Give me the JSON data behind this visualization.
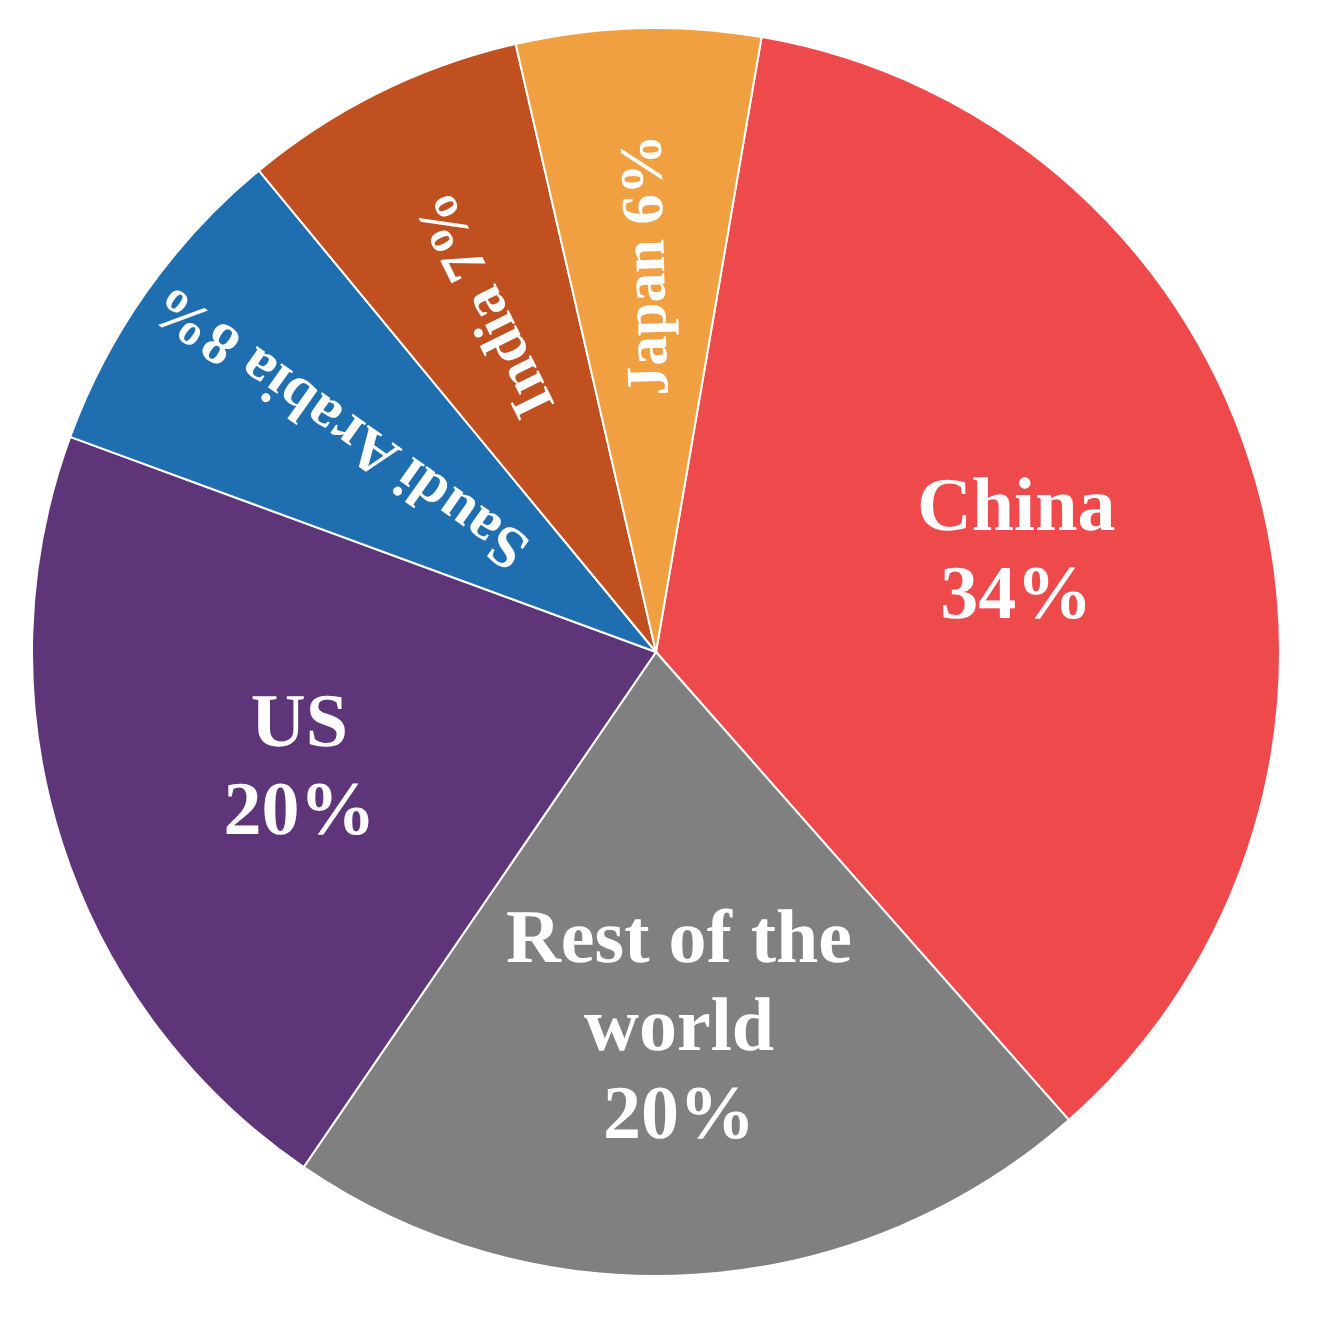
{
  "chart_data": {
    "type": "pie",
    "categories": [
      "China",
      "Rest of the world",
      "US",
      "Saudi Arabia",
      "India",
      "Japan"
    ],
    "values": [
      34,
      20,
      20,
      8,
      7,
      6
    ],
    "value_labels": [
      "34%",
      "20%",
      "20%",
      "8%",
      "7%",
      "6%"
    ],
    "colors": [
      "#ef4a4b",
      "#808080",
      "#5e3578",
      "#1f6eb0",
      "#c0501f",
      "#f0a040"
    ]
  }
}
